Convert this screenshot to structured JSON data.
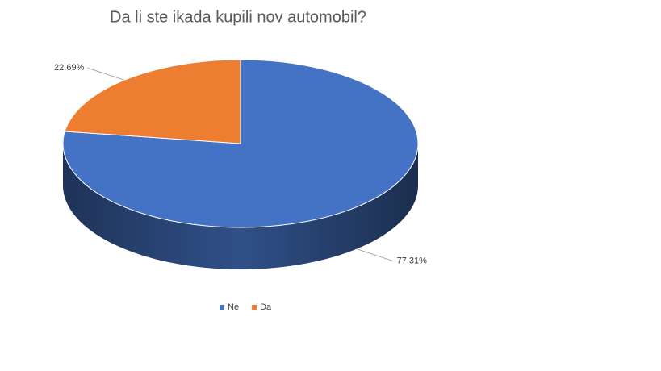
{
  "chart_data": {
    "type": "pie",
    "title": "Da li ste ikada kupili nov automobil?",
    "categories": [
      "Ne",
      "Da"
    ],
    "values": [
      77.31,
      22.69
    ],
    "value_labels": [
      "77.31%",
      "22.69%"
    ],
    "colors": [
      "#4472c4",
      "#ed7d31"
    ],
    "legend": "bottom"
  }
}
